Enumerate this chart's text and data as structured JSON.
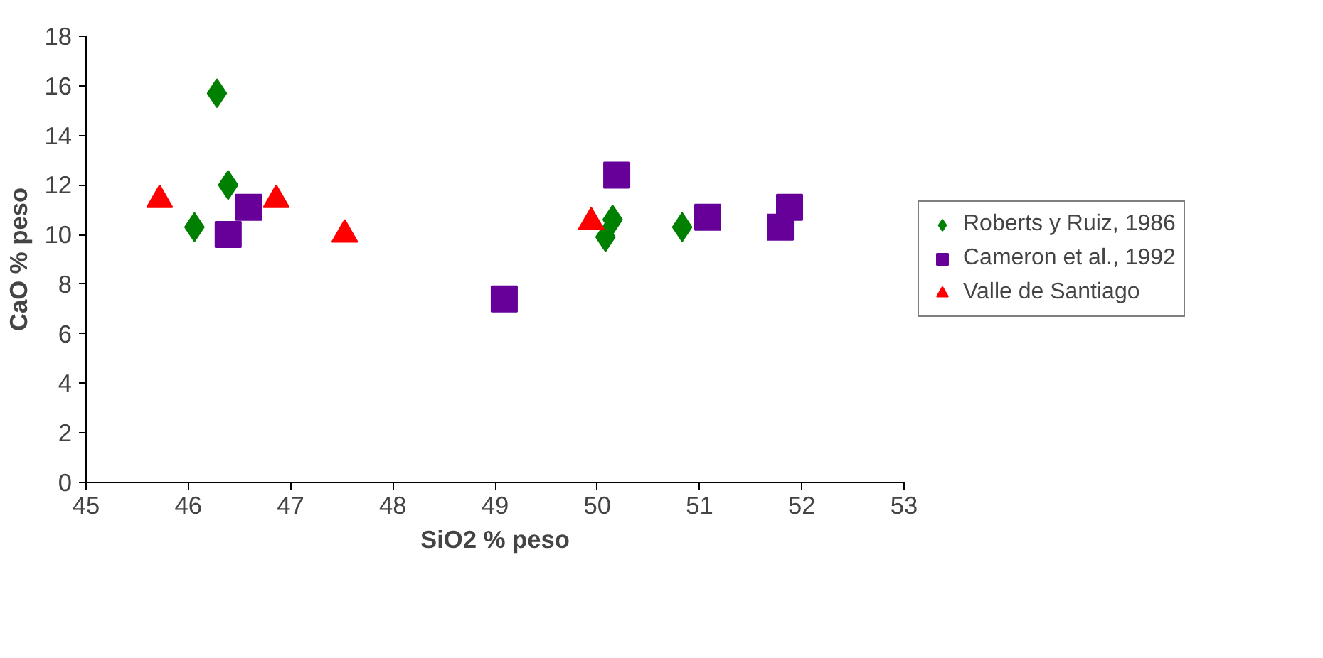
{
  "chart_data": {
    "type": "scatter",
    "xlabel": "SiO2 % peso",
    "ylabel": "CaO % peso",
    "xlim": [
      45,
      53
    ],
    "xticks": [
      45,
      46,
      47,
      48,
      49,
      50,
      51,
      52,
      53
    ],
    "ylim": [
      0,
      18
    ],
    "yticks": [
      0,
      2,
      4,
      6,
      8,
      10,
      12,
      14,
      16,
      18
    ],
    "grid": false,
    "legend": "right",
    "series": [
      {
        "name": "Roberts y Ruiz, 1986",
        "color": "#008000",
        "marker": "diamond",
        "x": [
          46.28,
          46.06,
          46.39,
          50.15,
          50.08,
          50.83
        ],
        "values": [
          15.7,
          10.3,
          12.0,
          10.6,
          9.9,
          10.3
        ]
      },
      {
        "name": "Cameron et al., 1992",
        "color": "#660099",
        "marker": "square",
        "x": [
          46.39,
          46.59,
          49.09,
          50.19,
          51.08,
          51.79,
          51.88
        ],
        "values": [
          10.0,
          11.1,
          7.4,
          12.4,
          10.7,
          10.3,
          11.1
        ]
      },
      {
        "name": "Valle de Santiago",
        "color": "#ff0000",
        "marker": "triangle",
        "x": [
          45.72,
          46.86,
          47.53,
          49.94
        ],
        "values": [
          11.4,
          11.4,
          10.0,
          10.5
        ]
      }
    ]
  }
}
